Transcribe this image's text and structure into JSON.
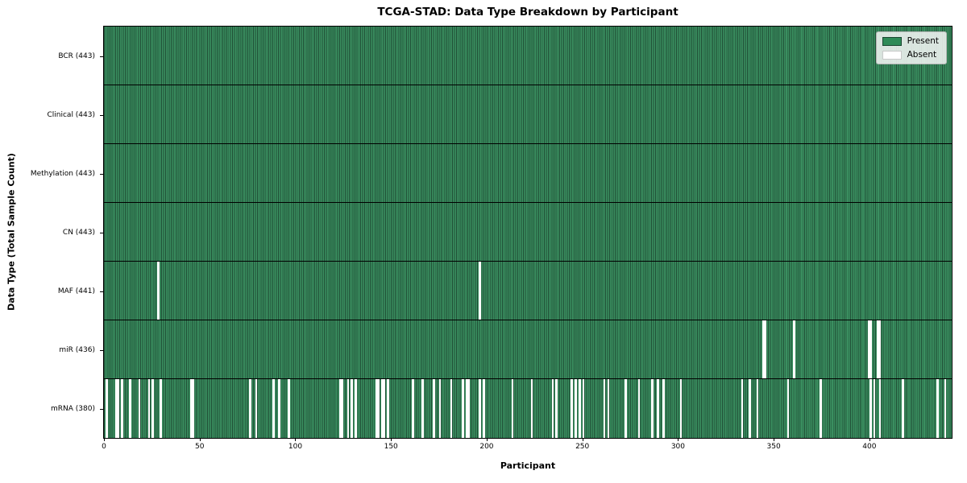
{
  "title": "TCGA-STAD: Data Type Breakdown by Participant",
  "xlabel": "Participant",
  "ylabel": "Data Type (Total Sample Count)",
  "legend": {
    "present_label": "Present",
    "absent_label": "Absent"
  },
  "colors": {
    "present": "#3a8f60",
    "bar_edge": "#204f36",
    "absent": "#ffffff",
    "legend_present_swatch": "#2e8b57",
    "legend_swatch_edge": "#1a4731",
    "plot_border": "#000000"
  },
  "chart_data": {
    "type": "heatmap",
    "title": "TCGA-STAD: Data Type Breakdown by Participant",
    "xlabel": "Participant",
    "ylabel": "Data Type (Total Sample Count)",
    "legend": [
      "Present",
      "Absent"
    ],
    "legend_position": "upper right",
    "x_range": [
      0,
      443
    ],
    "x_ticks": [
      0,
      50,
      100,
      150,
      200,
      250,
      300,
      350,
      400
    ],
    "n_participants": 443,
    "rows": [
      {
        "data_type": "BCR",
        "label": "BCR (443)",
        "count": 443,
        "absent_participants": []
      },
      {
        "data_type": "Clinical",
        "label": "Clinical (443)",
        "count": 443,
        "absent_participants": []
      },
      {
        "data_type": "Methylation",
        "label": "Methylation (443)",
        "count": 443,
        "absent_participants": []
      },
      {
        "data_type": "CN",
        "label": "CN (443)",
        "count": 443,
        "absent_participants": []
      },
      {
        "data_type": "MAF",
        "label": "MAF (441)",
        "count": 441,
        "absent_participants": [
          28,
          196
        ]
      },
      {
        "data_type": "miR",
        "label": "miR (436)",
        "count": 436,
        "absent_participants": [
          344,
          345,
          360,
          399,
          400,
          404,
          405
        ]
      },
      {
        "data_type": "mRNA",
        "label": "mRNA (380)",
        "count": 380,
        "absent_participants": [
          1,
          6,
          7,
          9,
          13,
          18,
          23,
          25,
          29,
          45,
          46,
          76,
          79,
          88,
          91,
          96,
          123,
          124,
          127,
          129,
          131,
          142,
          143,
          145,
          146,
          148,
          161,
          166,
          172,
          175,
          181,
          187,
          189,
          190,
          196,
          198,
          213,
          223,
          234,
          236,
          244,
          246,
          248,
          250,
          261,
          263,
          272,
          279,
          286,
          289,
          292,
          301,
          333,
          337,
          341,
          357,
          374,
          400,
          402,
          405,
          417,
          435,
          439
        ]
      }
    ]
  }
}
